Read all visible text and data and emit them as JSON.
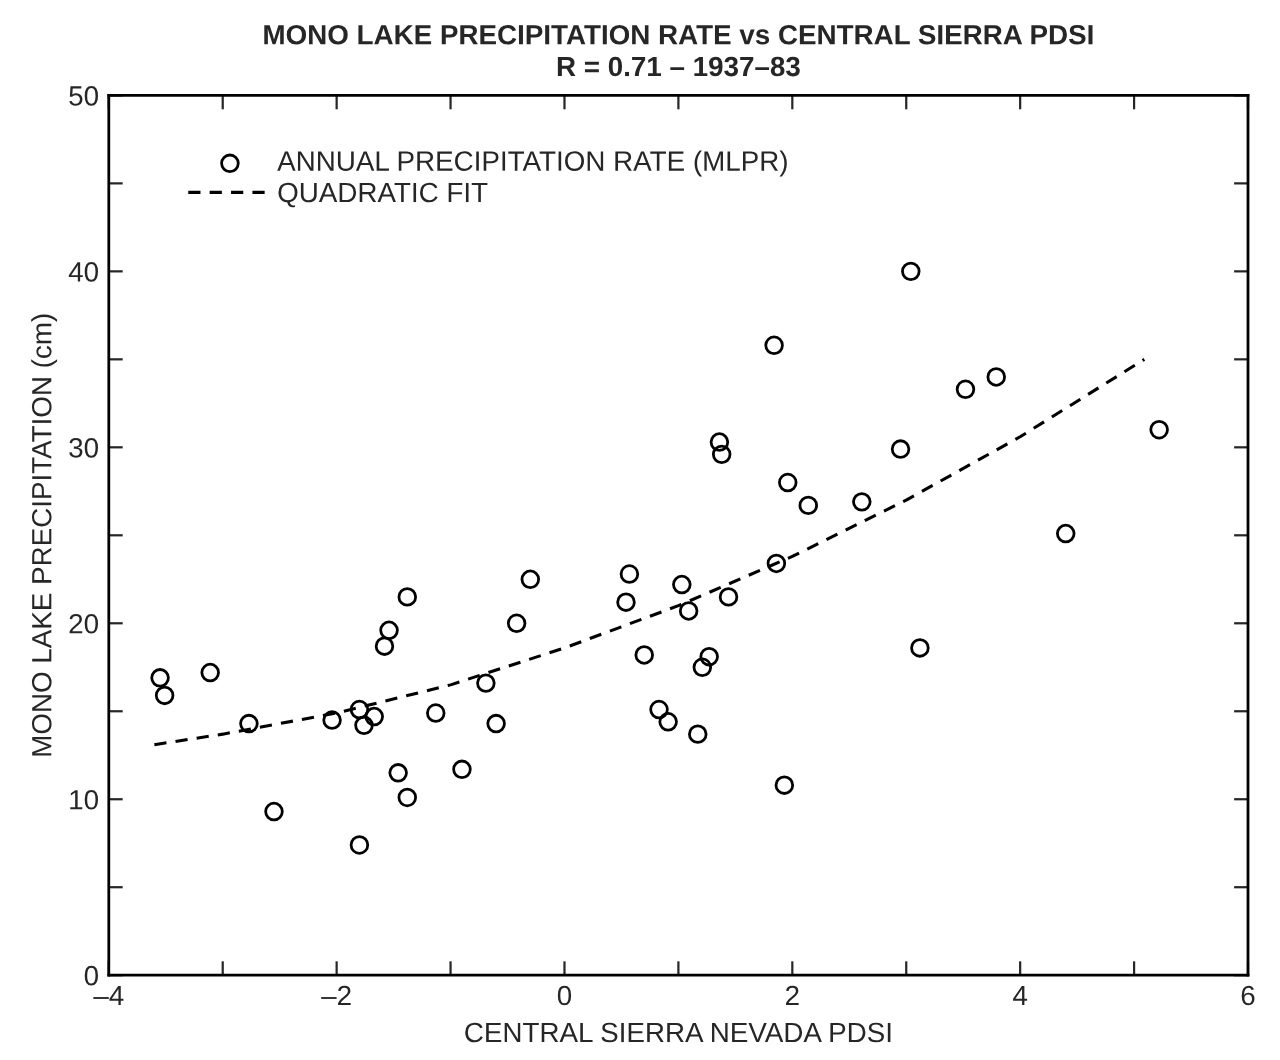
{
  "chart_data": {
    "type": "scatter",
    "title": "MONO LAKE PRECIPITATION RATE vs CENTRAL SIERRA PDSI",
    "subtitle": "R = 0.71 – 1937–83",
    "xlabel": "CENTRAL SIERRA NEVADA PDSI",
    "ylabel": "MONO LAKE PRECIPITATION (cm)",
    "xlim": [
      -4,
      6
    ],
    "ylim": [
      0,
      50
    ],
    "xticks": [
      {
        "value": -4,
        "label": "–4"
      },
      {
        "value": -3,
        "label": null
      },
      {
        "value": -2,
        "label": "–2"
      },
      {
        "value": -1,
        "label": null
      },
      0,
      {
        "value": 1,
        "label": null
      },
      2,
      {
        "value": 3,
        "label": null
      },
      4,
      {
        "value": 5,
        "label": null
      },
      6
    ],
    "yticks": [
      0,
      {
        "value": 5,
        "label": null
      },
      10,
      {
        "value": 15,
        "label": null
      },
      20,
      {
        "value": 25,
        "label": null
      },
      30,
      {
        "value": 35,
        "label": null
      },
      40,
      {
        "value": 45,
        "label": null
      },
      50
    ],
    "grid": false,
    "legend": "top left",
    "series": [
      {
        "name": "ANNUAL PRECIPITATION RATE (MLPR)",
        "color": "#000000",
        "marker": "circle",
        "x": [
          -3.55,
          -3.51,
          -3.11,
          -2.77,
          -2.55,
          -2.04,
          -1.8,
          -1.76,
          -1.67,
          -1.8,
          -1.58,
          -1.54,
          -1.46,
          -1.38,
          -1.38,
          -1.13,
          -0.9,
          -0.69,
          -0.6,
          -0.42,
          -0.3,
          0.54,
          0.57,
          0.7,
          0.83,
          0.91,
          1.03,
          1.09,
          1.17,
          1.21,
          1.27,
          1.36,
          1.38,
          1.44,
          1.84,
          1.86,
          1.96,
          1.93,
          2.14,
          2.61,
          2.95,
          3.04,
          3.12,
          3.52,
          3.79,
          4.4,
          5.22
        ],
        "values": [
          16.9,
          15.9,
          17.2,
          14.3,
          9.3,
          14.5,
          15.1,
          14.2,
          14.7,
          7.4,
          18.7,
          19.6,
          11.5,
          21.5,
          10.1,
          14.9,
          11.7,
          16.6,
          14.3,
          20.0,
          22.5,
          21.2,
          22.8,
          18.2,
          15.1,
          14.4,
          22.2,
          20.7,
          13.7,
          17.5,
          18.1,
          30.3,
          29.6,
          21.5,
          35.8,
          23.4,
          28.0,
          10.8,
          26.7,
          26.9,
          29.9,
          40.0,
          18.6,
          33.3,
          34.0,
          25.1,
          31.0
        ]
      },
      {
        "name": "QUADRATIC FIT",
        "type": "line",
        "color": "#000000",
        "line_style": "dashed",
        "marker": "none",
        "x": [
          -3.6,
          -3,
          -2,
          -1,
          0,
          1,
          2,
          3,
          4,
          5.09
        ],
        "values": [
          13.1,
          13.7,
          14.9,
          16.5,
          18.6,
          21.0,
          23.8,
          27.0,
          30.6,
          35.0
        ]
      }
    ]
  }
}
